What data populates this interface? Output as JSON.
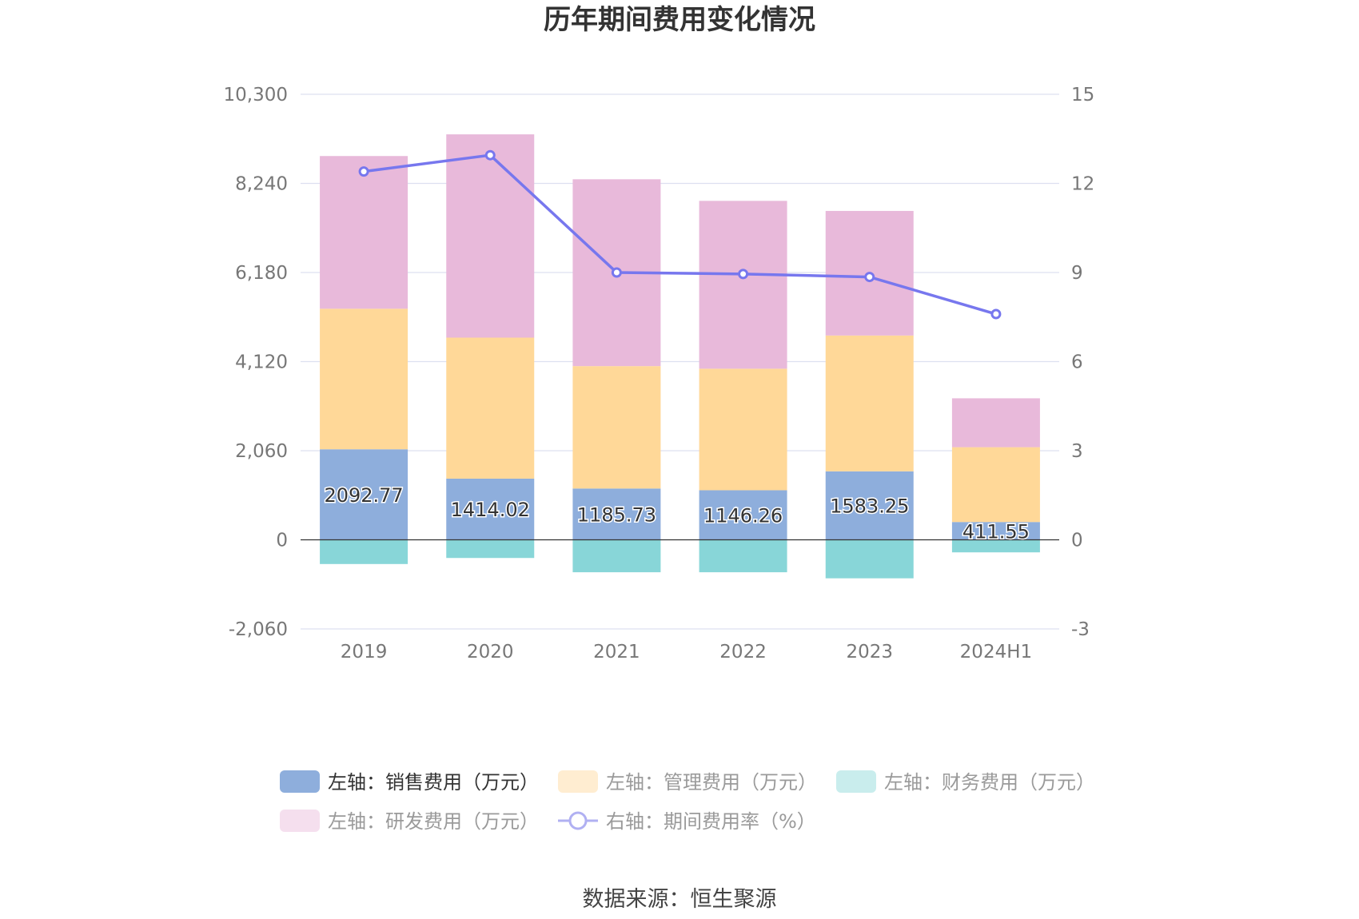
{
  "chart_data": {
    "type": "bar",
    "title": "历年期间费用变化情况",
    "categories": [
      "2019",
      "2020",
      "2021",
      "2022",
      "2023",
      "2024H1"
    ],
    "left_axis": {
      "min": -2060,
      "max": 10300,
      "ticks": [
        "10,300",
        "8,240",
        "6,180",
        "4,120",
        "2,060",
        "0",
        "-2,060"
      ],
      "tick_values": [
        10300,
        8240,
        6180,
        4120,
        2060,
        0,
        -2060
      ]
    },
    "right_axis": {
      "min": -3,
      "max": 15,
      "ticks": [
        "15",
        "12",
        "9",
        "6",
        "3",
        "0",
        "-3"
      ],
      "tick_values": [
        15,
        12,
        9,
        6,
        3,
        0,
        -3
      ]
    },
    "series": [
      {
        "name": "左轴：销售费用（万元）",
        "type": "bar",
        "axis": "left",
        "color": "#8eaedc",
        "values": [
          2092.77,
          1414.02,
          1185.73,
          1146.26,
          1583.25,
          411.55
        ],
        "labels": [
          "2092.77",
          "1414.02",
          "1185.73",
          "1146.26",
          "1583.25",
          "411.55"
        ]
      },
      {
        "name": "左轴：管理费用（万元）",
        "type": "bar",
        "axis": "left",
        "color": "#ffd898",
        "values": [
          3250,
          3260,
          2830,
          2810,
          3140,
          1730
        ]
      },
      {
        "name": "左轴：财务费用（万元）",
        "type": "bar",
        "axis": "left",
        "color": "#88d6d8",
        "values": [
          -560,
          -420,
          -750,
          -750,
          -890,
          -290
        ]
      },
      {
        "name": "左轴：研发费用（万元）",
        "type": "bar",
        "axis": "left",
        "color": "#e8b9da",
        "values": [
          3530,
          4700,
          4320,
          3880,
          2880,
          1130
        ]
      },
      {
        "name": "右轴：期间费用率（%）",
        "type": "line",
        "axis": "right",
        "color": "#7777ee",
        "values": [
          12.4,
          12.95,
          9.0,
          8.95,
          8.85,
          7.6
        ]
      }
    ],
    "legend": {
      "row1": [
        "左轴：销售费用（万元）",
        "左轴：管理费用（万元）",
        "左轴：财务费用（万元）"
      ],
      "row2": [
        "左轴：研发费用（万元）",
        "右轴：期间费用率（%）"
      ]
    },
    "source": "数据来源：恒生聚源"
  }
}
